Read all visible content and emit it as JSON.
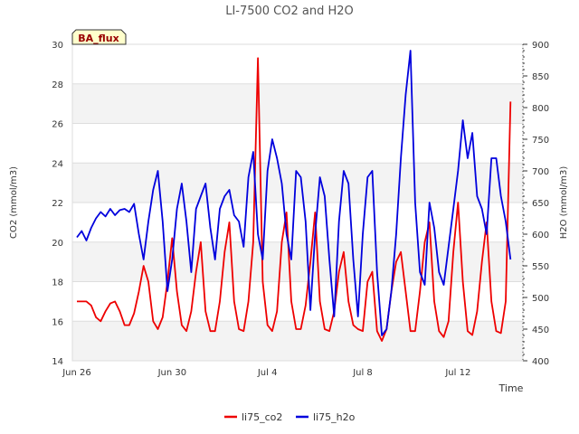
{
  "chart_data": {
    "type": "line",
    "title": "LI-7500 CO2 and H2O",
    "badge": "BA_flux",
    "xlabel": "Time",
    "ylabel_left": "CO2 (mmol/m3)",
    "ylabel_right": "H2O (mmol/m3)",
    "x_range": [
      "2024-06-26",
      "2024-07-14"
    ],
    "x_ticks": [
      {
        "date": "2024-06-26",
        "label": "Jun 26"
      },
      {
        "date": "2024-06-30",
        "label": "Jun 30"
      },
      {
        "date": "2024-07-04",
        "label": "Jul 4"
      },
      {
        "date": "2024-07-08",
        "label": "Jul 8"
      },
      {
        "date": "2024-07-12",
        "label": "Jul 12"
      }
    ],
    "ylim_left": [
      14,
      30
    ],
    "yticks_left": [
      14,
      16,
      18,
      20,
      22,
      24,
      26,
      28,
      30
    ],
    "ylim_right": [
      400,
      900
    ],
    "yticks_right": [
      400,
      450,
      500,
      550,
      600,
      650,
      700,
      750,
      800,
      850,
      900
    ],
    "grid": true,
    "legend_position": "bottom-center",
    "series": [
      {
        "name": "li75_co2",
        "color": "#ee0000",
        "axis": "left",
        "days": [
          0.0,
          0.4,
          0.6,
          0.8,
          1.0,
          1.2,
          1.4,
          1.6,
          1.8,
          2.0,
          2.2,
          2.4,
          2.6,
          2.8,
          3.0,
          3.2,
          3.4,
          3.6,
          3.8,
          4.0,
          4.2,
          4.4,
          4.6,
          4.8,
          5.0,
          5.2,
          5.4,
          5.6,
          5.8,
          6.0,
          6.2,
          6.4,
          6.6,
          6.8,
          7.0,
          7.2,
          7.4,
          7.6,
          7.8,
          8.0,
          8.2,
          8.4,
          8.6,
          8.8,
          9.0,
          9.2,
          9.4,
          9.6,
          9.8,
          10.0,
          10.2,
          10.4,
          10.6,
          10.8,
          11.0,
          11.2,
          11.4,
          11.6,
          11.8,
          12.0,
          12.2,
          12.4,
          12.6,
          12.8,
          13.0,
          13.2,
          13.4,
          13.6,
          13.8,
          14.0,
          14.2,
          14.4,
          14.6,
          14.8,
          15.0,
          15.2,
          15.4,
          15.6,
          15.8,
          16.0,
          16.2,
          16.4,
          16.6,
          16.8,
          17.0,
          17.2,
          17.4,
          17.6,
          17.8,
          18.0,
          18.2
        ],
        "values": [
          17.0,
          17.0,
          16.8,
          16.2,
          16.0,
          16.5,
          16.9,
          17.0,
          16.5,
          15.8,
          15.8,
          16.4,
          17.5,
          18.8,
          18.0,
          16.0,
          15.6,
          16.2,
          18.0,
          20.2,
          17.5,
          15.8,
          15.5,
          16.5,
          18.5,
          20.0,
          16.5,
          15.5,
          15.5,
          17.0,
          19.5,
          21.0,
          17.0,
          15.6,
          15.5,
          17.0,
          20.0,
          29.3,
          18.0,
          15.8,
          15.5,
          16.5,
          20.0,
          21.5,
          17.0,
          15.6,
          15.6,
          16.8,
          19.0,
          21.5,
          17.0,
          15.6,
          15.5,
          16.5,
          18.5,
          19.5,
          17.0,
          15.8,
          15.6,
          15.5,
          18.0,
          18.5,
          15.5,
          15.0,
          15.6,
          17.5,
          19.0,
          19.5,
          17.5,
          15.5,
          15.5,
          17.5,
          20.0,
          21.0,
          17.0,
          15.5,
          15.2,
          16.0,
          19.5,
          22.0,
          18.0,
          15.5,
          15.3,
          16.5,
          19.0,
          21.0,
          17.0,
          15.5,
          15.4,
          17.0,
          27.1
        ]
      },
      {
        "name": "li75_h2o",
        "color": "#0000dd",
        "axis": "right",
        "days": [
          0.0,
          0.2,
          0.4,
          0.6,
          0.8,
          1.0,
          1.2,
          1.4,
          1.6,
          1.8,
          2.0,
          2.2,
          2.4,
          2.6,
          2.8,
          3.0,
          3.2,
          3.4,
          3.6,
          3.8,
          4.0,
          4.2,
          4.4,
          4.6,
          4.8,
          5.0,
          5.2,
          5.4,
          5.6,
          5.8,
          6.0,
          6.2,
          6.4,
          6.6,
          6.8,
          7.0,
          7.2,
          7.4,
          7.6,
          7.8,
          8.0,
          8.2,
          8.4,
          8.6,
          8.8,
          9.0,
          9.2,
          9.4,
          9.6,
          9.8,
          10.0,
          10.2,
          10.4,
          10.6,
          10.8,
          11.0,
          11.2,
          11.4,
          11.6,
          11.8,
          12.0,
          12.2,
          12.4,
          12.6,
          12.8,
          13.0,
          13.2,
          13.4,
          13.6,
          13.8,
          14.0,
          14.2,
          14.4,
          14.6,
          14.8,
          15.0,
          15.2,
          15.4,
          15.6,
          15.8,
          16.0,
          16.2,
          16.4,
          16.6,
          16.8,
          17.0,
          17.2,
          17.4,
          17.6,
          17.8,
          18.0,
          18.2
        ],
        "values": [
          595,
          605,
          590,
          610,
          625,
          635,
          628,
          640,
          630,
          638,
          640,
          635,
          648,
          600,
          560,
          620,
          670,
          700,
          620,
          510,
          560,
          640,
          680,
          620,
          540,
          640,
          660,
          680,
          610,
          560,
          640,
          660,
          670,
          630,
          620,
          580,
          690,
          730,
          600,
          560,
          700,
          750,
          720,
          680,
          600,
          560,
          700,
          690,
          620,
          480,
          600,
          690,
          660,
          560,
          470,
          620,
          700,
          680,
          560,
          470,
          600,
          690,
          700,
          540,
          440,
          450,
          510,
          600,
          720,
          820,
          890,
          650,
          540,
          520,
          650,
          610,
          540,
          520,
          580,
          640,
          700,
          780,
          720,
          760,
          660,
          640,
          600,
          720,
          720,
          660,
          620,
          560
        ]
      }
    ]
  }
}
